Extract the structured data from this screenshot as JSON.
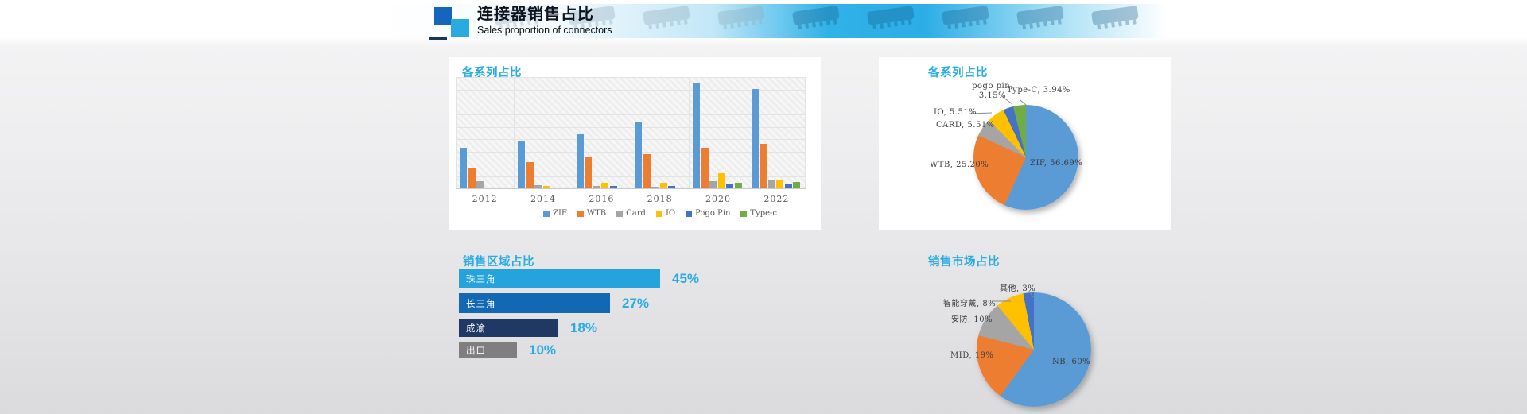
{
  "header": {
    "title": "连接器销售占比",
    "subtitle": "Sales proportion of connectors",
    "icons": {
      "logo": "overlapping-blue-squares",
      "decor": "connector-product-photo-strip"
    },
    "accent_color": "#29ABE2"
  },
  "chart_data": [
    {
      "type": "bar",
      "title": "各系列占比",
      "categories": [
        "2012",
        "2014",
        "2016",
        "2018",
        "2020",
        "2022"
      ],
      "series": [
        {
          "name": "ZIF",
          "color": "#5B9BD5",
          "values": [
            23,
            27,
            31,
            38,
            60,
            56.7
          ]
        },
        {
          "name": "WTB",
          "color": "#ED7D31",
          "values": [
            12,
            15,
            17.5,
            19.5,
            23,
            25.2
          ]
        },
        {
          "name": "Card",
          "color": "#A5A5A5",
          "values": [
            4,
            2,
            1.5,
            1,
            4,
            5
          ]
        },
        {
          "name": "IO",
          "color": "#FFC000",
          "values": [
            0,
            1.5,
            3,
            3,
            8.5,
            4.8
          ]
        },
        {
          "name": "Pogo Pin",
          "color": "#4472C4",
          "values": [
            0,
            0,
            1.5,
            1.5,
            2.7,
            2.6
          ]
        },
        {
          "name": "Type-c",
          "color": "#70AD47",
          "values": [
            0,
            0,
            0,
            0,
            3.2,
            3.8
          ]
        }
      ],
      "ylim": [
        0,
        63
      ],
      "unit": "%",
      "grid": true,
      "legend_position": "bottom"
    },
    {
      "type": "pie",
      "title": "各系列占比",
      "slices": [
        {
          "label": "ZIF",
          "value": 56.69,
          "text": "ZIF, 56.69%",
          "color": "#5B9BD5"
        },
        {
          "label": "WTB",
          "value": 25.2,
          "text": "WTB, 25.20%",
          "color": "#ED7D31"
        },
        {
          "label": "CARD",
          "value": 5.51,
          "text": "CARD, 5.51%",
          "color": "#A5A5A5"
        },
        {
          "label": "IO",
          "value": 5.51,
          "text": "IO, 5.51%",
          "color": "#FFC000"
        },
        {
          "label": "pogo pin",
          "value": 3.15,
          "text_line1": "pogo pin,",
          "text_line2": "3.15%",
          "color": "#4472C4"
        },
        {
          "label": "Type-C",
          "value": 3.94,
          "text": "Type-C, 3.94%",
          "color": "#70AD47"
        }
      ],
      "start_angle": 0,
      "direction": "clockwise"
    },
    {
      "type": "bar",
      "orientation": "horizontal",
      "title": "销售区域占比",
      "categories": [
        "珠三角",
        "长三角",
        "成渝",
        "出口"
      ],
      "values": [
        45,
        27,
        18,
        10
      ],
      "value_labels": [
        "45%",
        "27%",
        "18%",
        "10%"
      ],
      "bar_colors": [
        "#24A3DC",
        "#1268B3",
        "#1F3864",
        "#7F7F7F"
      ],
      "value_label_color": "#29ABE2"
    },
    {
      "type": "pie",
      "title": "销售市场占比",
      "slices": [
        {
          "label": "NB",
          "value": 60,
          "text": "NB, 60%",
          "color": "#5B9BD5"
        },
        {
          "label": "MID",
          "value": 19,
          "text": "MID, 19%",
          "color": "#ED7D31"
        },
        {
          "label": "安防",
          "value": 10,
          "text": "安防, 10%",
          "color": "#A5A5A5"
        },
        {
          "label": "智能穿戴",
          "value": 8,
          "text": "智能穿戴, 8%",
          "color": "#FFC000"
        },
        {
          "label": "其他",
          "value": 3,
          "text": "其他, 3%",
          "color": "#4472C4"
        }
      ],
      "start_angle": 0,
      "direction": "clockwise"
    }
  ]
}
